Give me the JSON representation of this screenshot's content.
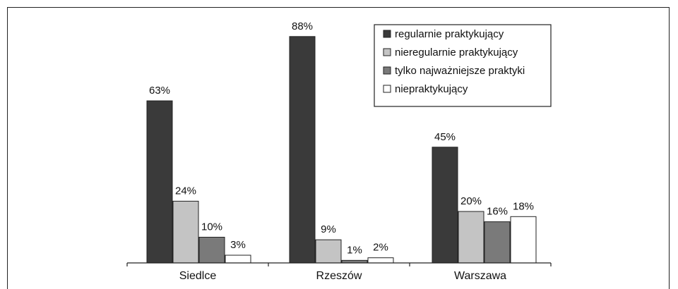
{
  "chart_data": {
    "type": "bar",
    "categories": [
      "Siedlce",
      "Rzeszów",
      "Warszawa"
    ],
    "series": [
      {
        "name": "regularnie praktykujący",
        "color": "#3a3a3a",
        "values": [
          63,
          88,
          45
        ],
        "labels": [
          "63%",
          "88%",
          "45%"
        ]
      },
      {
        "name": "nieregularnie praktykujący",
        "color": "#c4c4c4",
        "values": [
          24,
          9,
          20
        ],
        "labels": [
          "24%",
          "9%",
          "20%"
        ]
      },
      {
        "name": "tylko najważniejsze praktyki",
        "color": "#7a7a7a",
        "values": [
          10,
          1,
          16
        ],
        "labels": [
          "10%",
          "1%",
          "16%"
        ]
      },
      {
        "name": "niepraktykujący",
        "color": "#ffffff",
        "values": [
          3,
          2,
          18
        ],
        "labels": [
          "3%",
          "2%",
          "18%"
        ]
      }
    ],
    "title": "",
    "xlabel": "",
    "ylabel": "",
    "ylim": [
      0,
      100
    ],
    "grid": false,
    "legend_position": "top-right"
  }
}
